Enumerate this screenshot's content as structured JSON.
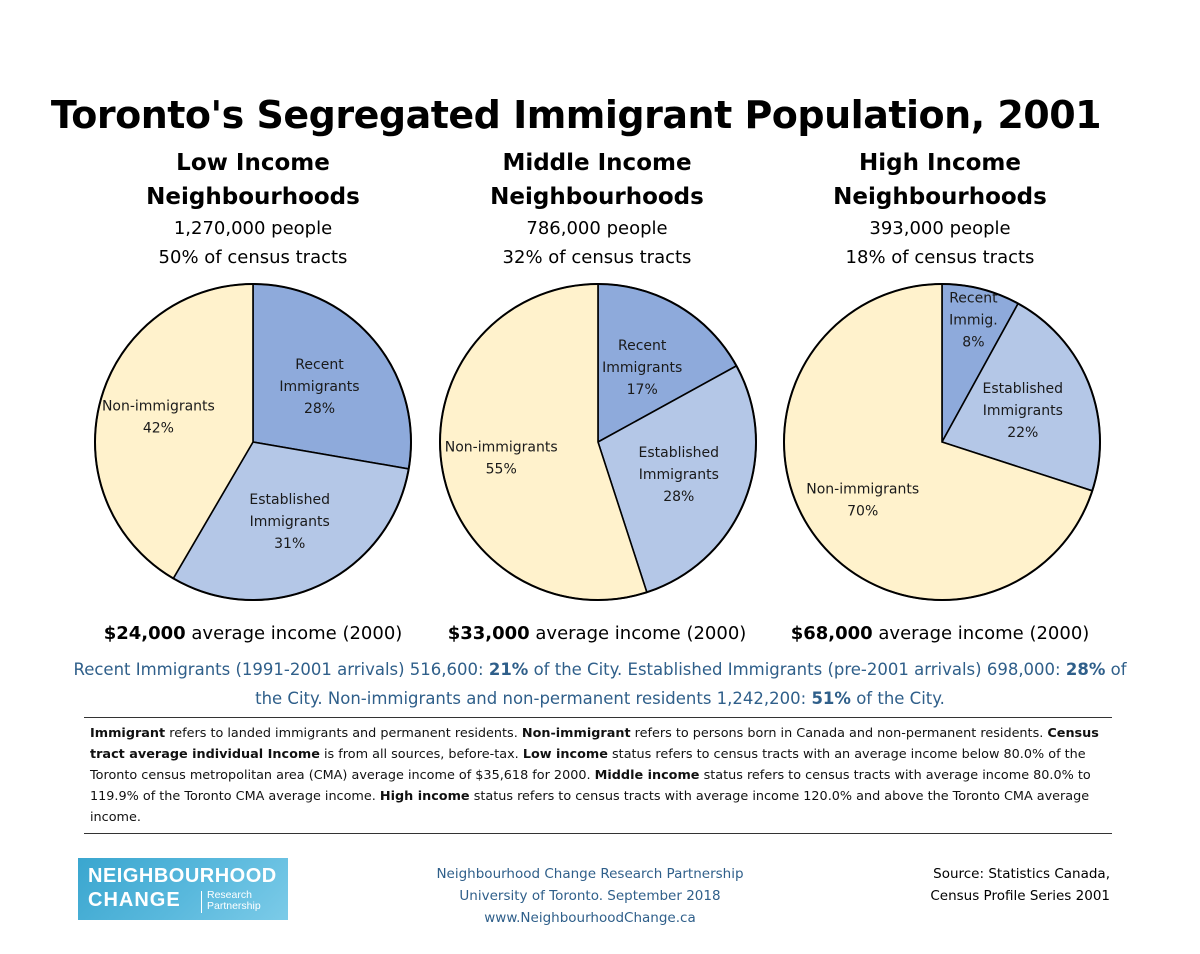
{
  "title": "Toronto's Segregated Immigrant Population, 2001",
  "colors": {
    "recent": "#8eaadb",
    "established": "#b4c7e7",
    "non_immigrants": "#fff2cc",
    "text_blue": "#2f5f8a"
  },
  "panels": [
    {
      "heading1": "Low Income",
      "heading2": "Neighbourhoods",
      "people": "1,270,000 people",
      "tracts": "50% of census tracts",
      "income_amount": "$24,000",
      "income_rest": " average income (2000)"
    },
    {
      "heading1": "Middle Income",
      "heading2": "Neighbourhoods",
      "people": "786,000 people",
      "tracts": "32% of census tracts",
      "income_amount": "$33,000",
      "income_rest": " average income (2000)"
    },
    {
      "heading1": "High Income",
      "heading2": "Neighbourhoods",
      "people": "393,000 people",
      "tracts": "18% of census tracts",
      "income_amount": "$68,000",
      "income_rest": " average income (2000)"
    }
  ],
  "chart_data": [
    {
      "type": "pie",
      "title": "Low Income Neighbourhoods",
      "categories": [
        "Recent Immigrants",
        "Established Immigrants",
        "Non-immigrants"
      ],
      "values": [
        28,
        31,
        42
      ],
      "labels": [
        [
          "Recent",
          "Immigrants",
          "28%"
        ],
        [
          "Established",
          "Immigrants",
          "31%"
        ],
        [
          "Non-immigrants",
          "42%"
        ]
      ],
      "colors": [
        "#8eaadb",
        "#b4c7e7",
        "#fff2cc"
      ]
    },
    {
      "type": "pie",
      "title": "Middle Income Neighbourhoods",
      "categories": [
        "Recent Immigrants",
        "Established Immigrants",
        "Non-immigrants"
      ],
      "values": [
        17,
        28,
        55
      ],
      "labels": [
        [
          "Recent",
          "Immigrants",
          "17%"
        ],
        [
          "Established",
          "Immigrants",
          "28%"
        ],
        [
          "Non-immigrants",
          "55%"
        ]
      ],
      "colors": [
        "#8eaadb",
        "#b4c7e7",
        "#fff2cc"
      ]
    },
    {
      "type": "pie",
      "title": "High Income Neighbourhoods",
      "categories": [
        "Recent Immigrants",
        "Established Immigrants",
        "Non-immigrants"
      ],
      "values": [
        8,
        22,
        70
      ],
      "labels": [
        [
          "Recent",
          "Immig.",
          "8%"
        ],
        [
          "Established",
          "Immigrants",
          "22%"
        ],
        [
          "Non-immigrants",
          "70%"
        ]
      ],
      "colors": [
        "#8eaadb",
        "#b4c7e7",
        "#fff2cc"
      ]
    }
  ],
  "summary": {
    "p1": "Recent Immigrants (1991-2001 arrivals) 516,600: ",
    "b1": "21%",
    "p2": " of the City. Established Immigrants (pre-2001 arrivals) 698,000: ",
    "b2": "28%",
    "p3": " of the City. Non-immigrants and non-permanent residents 1,242,200: ",
    "b3": "51%",
    "p4": " of the City."
  },
  "notes": {
    "t1": "Immigrant",
    "s1": " refers to landed immigrants and permanent residents. ",
    "t2": "Non-immigrant",
    "s2": " refers to persons born in Canada and non-permanent residents. ",
    "t3": "Census tract average individual Income",
    "s3": " is from all sources, before-tax. ",
    "t4": "Low income",
    "s4": " status refers to census tracts with an average income below 80.0% of the Toronto census metropolitan area (CMA) average income of $35,618 for 2000. ",
    "t5": "Middle income",
    "s5": " status refers to census tracts with average income 80.0% to 119.9% of the Toronto CMA average income. ",
    "t6": "High income",
    "s6": " status refers to census tracts with average income 120.0% and above the Toronto CMA average income."
  },
  "logo": {
    "line1": "NEIGHBOURHOOD",
    "line2": "CHANGE",
    "sub1": "Research",
    "sub2": "Partnership"
  },
  "footer": {
    "line1": "Neighbourhood Change Research Partnership",
    "line2": "University of Toronto. September 2018",
    "line3": "www.NeighbourhoodChange.ca",
    "source1": "Source: Statistics Canada,",
    "source2": "Census Profile Series 2001"
  }
}
